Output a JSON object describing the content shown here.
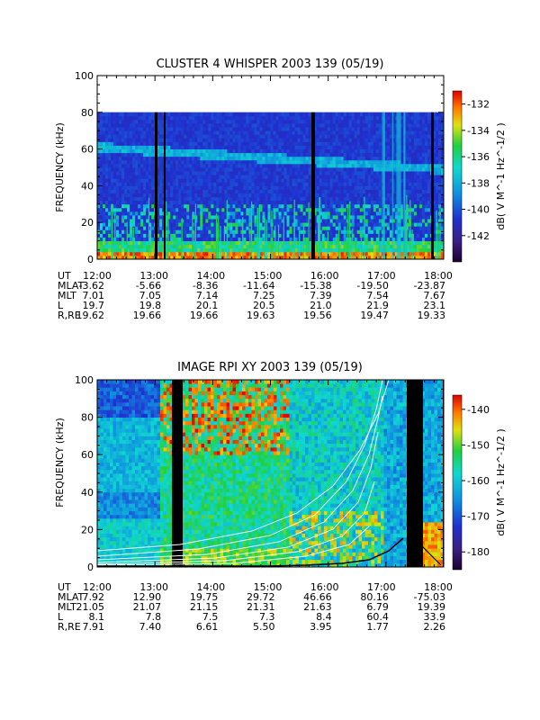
{
  "chart_data": [
    {
      "type": "heatmap",
      "title": "CLUSTER 4 WHISPER 2003 139 (05/19)",
      "ylabel": "FREQUENCY (kHz)",
      "ylim": [
        0,
        100
      ],
      "yticks": [
        0,
        20,
        40,
        60,
        80,
        100
      ],
      "x_time": [
        "12:00",
        "13:00",
        "14:00",
        "15:00",
        "16:00",
        "17:00",
        "18:00"
      ],
      "data_extent_khz": [
        0,
        80
      ],
      "colorbar": {
        "label": "dB( V M^-1 Hz^-1/2 )",
        "range": [
          -144,
          -131
        ],
        "ticks": [
          -132,
          -134,
          -136,
          -138,
          -140,
          -142
        ]
      },
      "ephemeris": {
        "rows": [
          {
            "label": "UT",
            "values": [
              "12:00",
              "13:00",
              "14:00",
              "15:00",
              "16:00",
              "17:00",
              "18:00"
            ]
          },
          {
            "label": "MLAT",
            "values": [
              "-3.62",
              "-5.66",
              "-8.36",
              "-11.64",
              "-15.38",
              "-19.50",
              "-23.87"
            ]
          },
          {
            "label": "MLT",
            "values": [
              "7.01",
              "7.05",
              "7.14",
              "7.25",
              "7.39",
              "7.54",
              "7.67"
            ]
          },
          {
            "label": "L",
            "values": [
              "19.7",
              "19.8",
              "20.1",
              "20.5",
              "21.0",
              "21.9",
              "23.1"
            ]
          },
          {
            "label": "R,RE",
            "values": [
              "19.62",
              "19.66",
              "19.66",
              "19.63",
              "19.56",
              "19.47",
              "19.33"
            ]
          }
        ]
      }
    },
    {
      "type": "heatmap",
      "title": "IMAGE RPI XY 2003 139 (05/19)",
      "ylabel": "FREQUENCY (kHz)",
      "ylim": [
        0,
        100
      ],
      "yticks": [
        0,
        20,
        40,
        60,
        80,
        100
      ],
      "x_time": [
        "12:00",
        "13:00",
        "14:00",
        "15:00",
        "16:00",
        "17:00",
        "18:00"
      ],
      "data_extent_khz": [
        0,
        100
      ],
      "colorbar": {
        "label": "dB( V M^-1 Hz^-1/2 )",
        "range": [
          -185,
          -136
        ],
        "ticks": [
          -140,
          -150,
          -160,
          -170,
          -180
        ]
      },
      "ephemeris": {
        "rows": [
          {
            "label": "UT",
            "values": [
              "12:00",
              "13:00",
              "14:00",
              "15:00",
              "16:00",
              "17:00",
              "18:00"
            ]
          },
          {
            "label": "MLAT",
            "values": [
              "7.92",
              "12.90",
              "19.75",
              "29.72",
              "46.66",
              "80.16",
              "-75.03"
            ]
          },
          {
            "label": "MLT",
            "values": [
              "21.05",
              "21.07",
              "21.15",
              "21.31",
              "21.63",
              "6.79",
              "19.39"
            ]
          },
          {
            "label": "L",
            "values": [
              "8.1",
              "7.8",
              "7.5",
              "7.3",
              "8.4",
              "60.4",
              "33.9"
            ]
          },
          {
            "label": "R,RE",
            "values": [
              "7.91",
              "7.40",
              "6.61",
              "5.50",
              "3.95",
              "1.77",
              "2.26"
            ]
          }
        ]
      }
    }
  ]
}
